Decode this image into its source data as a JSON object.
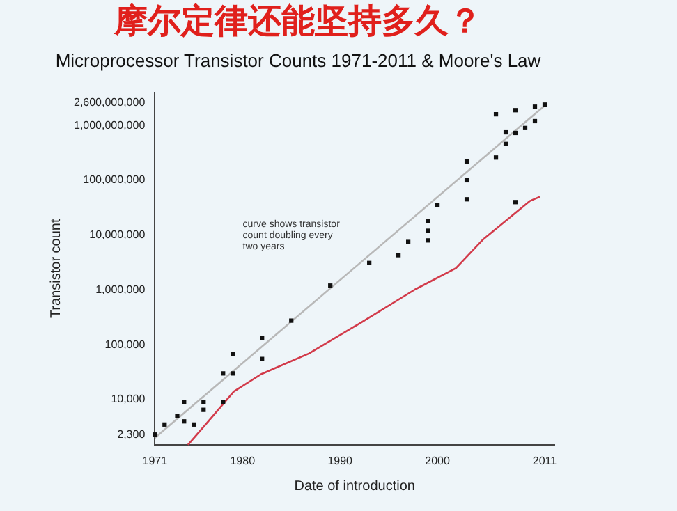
{
  "chart_data": {
    "type": "scatter",
    "title": "摩尔定律还能坚持多久？",
    "subtitle": "Microprocessor Transistor Counts 1971-2011 & Moore's Law",
    "xlabel": "Date of introduction",
    "ylabel": "Transistor count",
    "log": "y",
    "grid": false,
    "legend": false,
    "xlim": [
      1971,
      2012
    ],
    "xticks": [
      1971,
      1980,
      1990,
      2000,
      2011
    ],
    "ylim": [
      1500,
      4000000000
    ],
    "yticks": [
      {
        "value": 2300,
        "label": "2,300"
      },
      {
        "value": 10000,
        "label": "10,000"
      },
      {
        "value": 100000,
        "label": "100,000"
      },
      {
        "value": 1000000,
        "label": "1,000,000"
      },
      {
        "value": 10000000,
        "label": "10,000,000"
      },
      {
        "value": 100000000,
        "label": "100,000,000"
      },
      {
        "value": 1000000000,
        "label": "1,000,000,000"
      },
      {
        "value": 2600000000,
        "label": "2,600,000,000"
      }
    ],
    "annotations": [
      "curve shows transistor count doubling every two years"
    ],
    "series": [
      {
        "type": "line",
        "marker": "none",
        "color": "#b8b8b8",
        "x": [
          1971,
          2011
        ],
        "values": [
          2000,
          2300000000
        ]
      },
      {
        "type": "line",
        "marker": "none",
        "color": "#d23a4a",
        "x": [
          1974.4,
          1976.2,
          1979.1,
          1981.9,
          1986.8,
          1992.1,
          1997.7,
          2001.9,
          2004.7,
          2009.5,
          2010.5
        ],
        "values": [
          1500,
          3500,
          14000,
          29000,
          69000,
          250000,
          1020000,
          2500000,
          8400000,
          42000000,
          50000000
        ]
      },
      {
        "marker": "square",
        "color": "#111111",
        "x": [
          1971,
          1972,
          1973.3,
          1974,
          1974,
          1976,
          1976,
          1975,
          1978,
          1978,
          1979,
          1979,
          1982,
          1982,
          1985,
          1989,
          1993,
          1996,
          1997,
          1999,
          1999,
          1999,
          2000,
          2003,
          2003,
          2008,
          2003,
          2006,
          2007,
          2007,
          2006,
          2008,
          2010,
          2011,
          2008,
          2009,
          2010
        ],
        "values": [
          2300,
          3500,
          5000,
          4000,
          9000,
          9000,
          6500,
          3500,
          9000,
          30000,
          30000,
          68000,
          134000,
          55000,
          275000,
          1200000,
          3100000,
          4300000,
          7500000,
          8000000,
          12000000,
          18000000,
          35000000,
          45000000,
          100000000,
          40000000,
          220000000,
          260000000,
          460000000,
          750000000,
          1600000000,
          1900000000,
          2200000000,
          2400000000,
          730000000,
          900000000,
          1200000000
        ]
      }
    ]
  }
}
